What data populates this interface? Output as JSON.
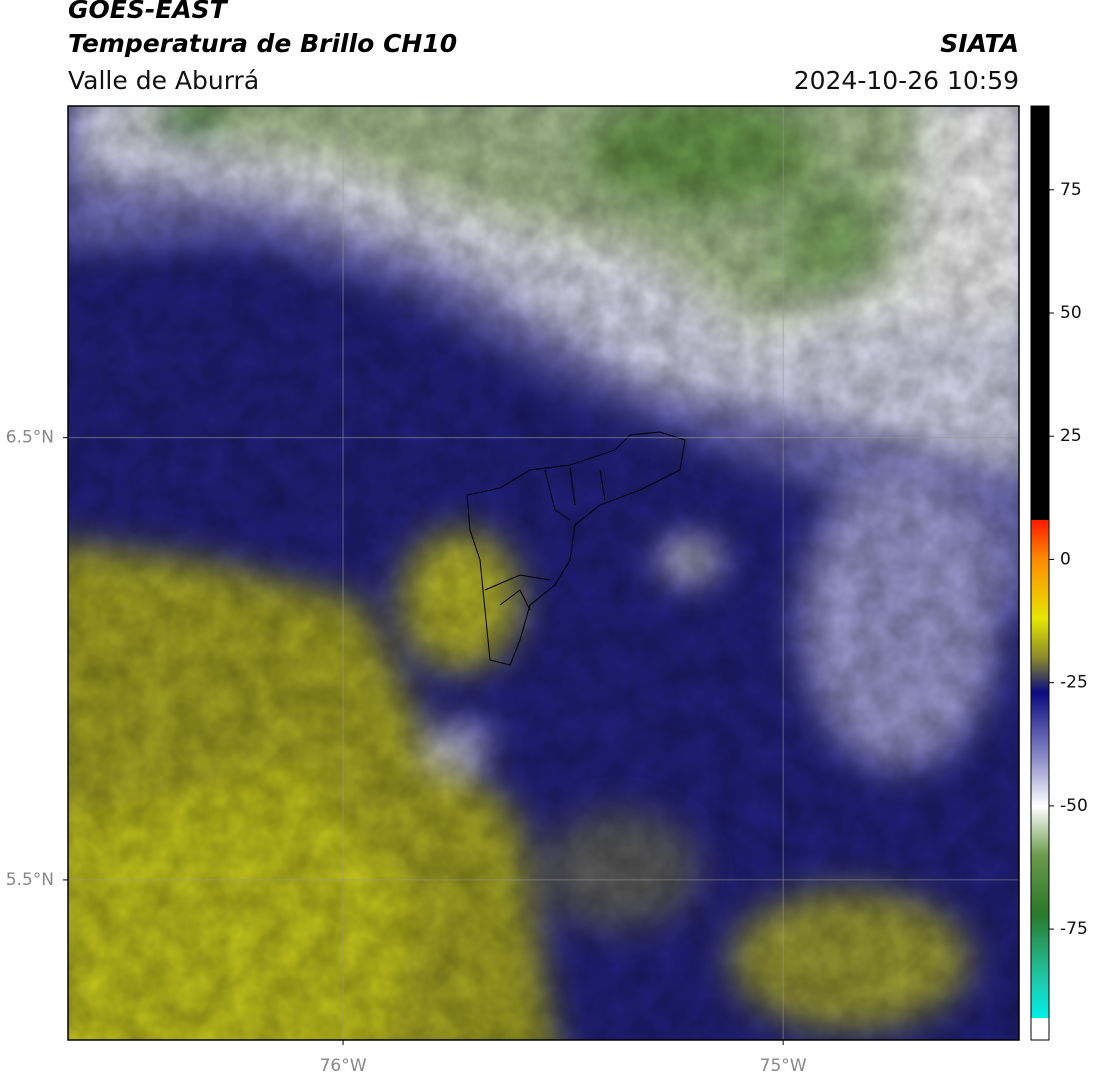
{
  "header": {
    "title": "GOES-EAST",
    "subtitle": "Temperatura de Brillo CH10",
    "region": "Valle de Aburrá",
    "source": "SIATA",
    "timestamp": "2024-10-26 10:59"
  },
  "map": {
    "xlim": [
      -76.625,
      -74.464
    ],
    "ylim": [
      5.138,
      7.25
    ],
    "xticks": [
      {
        "value": -76,
        "label": "76°W"
      },
      {
        "value": -75,
        "label": "75°W"
      }
    ],
    "yticks": [
      {
        "value": 6.5,
        "label": "6.5°N"
      },
      {
        "value": 5.5,
        "label": "5.5°N"
      }
    ],
    "grid": true
  },
  "colorbar": {
    "lim": [
      -97.5,
      92
    ],
    "ticks": [
      75,
      50,
      25,
      0,
      -25,
      -50,
      -75
    ]
  }
}
